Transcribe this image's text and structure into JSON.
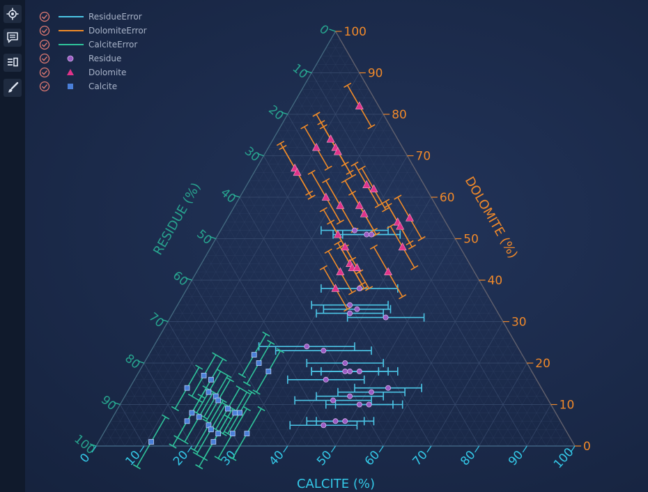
{
  "toolbar": {
    "items": [
      {
        "name": "zoom-to-fit-button",
        "icon": "crosshair-icon"
      },
      {
        "name": "annotations-button",
        "icon": "comment-icon"
      },
      {
        "name": "legend-toggle-button",
        "icon": "legend-icon"
      },
      {
        "name": "theme-button",
        "icon": "brush-icon"
      }
    ]
  },
  "colors": {
    "calcite": "#34c9e8",
    "dolomite": "#f0892a",
    "residue": "#2ab89a",
    "residue_err": "#4cc6e6",
    "dolomite_err": "#f28c28",
    "calcite_err": "#2fc49b",
    "residue_marker": "#9b5cc4",
    "dolomite_marker": "#e0338a",
    "calcite_marker": "#4a7fd8",
    "grid": "#3a4d70",
    "check": "#e07a72"
  },
  "chart_data": {
    "type": "ternary-scatter",
    "axes": {
      "calcite": {
        "title": "CALCITE (%)",
        "ticks": [
          0,
          10,
          20,
          30,
          40,
          50,
          60,
          70,
          80,
          90,
          100
        ],
        "range": [
          0,
          100
        ]
      },
      "dolomite": {
        "title": "DOLOMITE (%)",
        "ticks": [
          0,
          10,
          20,
          30,
          40,
          50,
          60,
          70,
          80,
          90,
          100
        ],
        "range": [
          0,
          100
        ]
      },
      "residue": {
        "title": "RESIDUE (%)",
        "ticks": [
          0,
          10,
          20,
          30,
          40,
          50,
          60,
          70,
          80,
          90,
          100
        ],
        "range": [
          0,
          100
        ]
      }
    },
    "legend": {
      "position": "top-left",
      "entries": [
        {
          "name": "ResidueError",
          "kind": "line",
          "color": "#4cc6e6"
        },
        {
          "name": "DolomiteError",
          "kind": "line",
          "color": "#f28c28"
        },
        {
          "name": "CalciteError",
          "kind": "line",
          "color": "#2fc49b"
        },
        {
          "name": "Residue",
          "kind": "circle",
          "color": "#9b5cc4"
        },
        {
          "name": "Dolomite",
          "kind": "triangle",
          "color": "#e0338a"
        },
        {
          "name": "Calcite",
          "kind": "square",
          "color": "#4a7fd8"
        }
      ]
    },
    "series": [
      {
        "name": "Residue",
        "marker": "circle",
        "error_axis": "residue",
        "points": [
          {
            "calcite": 28,
            "dolomite": 52,
            "residue": 20,
            "err": 7
          },
          {
            "calcite": 31,
            "dolomite": 51,
            "residue": 18,
            "err": 7
          },
          {
            "calcite": 32,
            "dolomite": 51,
            "residue": 17,
            "err": 6
          },
          {
            "calcite": 36,
            "dolomite": 38,
            "residue": 26,
            "err": 8
          },
          {
            "calcite": 36,
            "dolomite": 34,
            "residue": 30,
            "err": 8
          },
          {
            "calcite": 38,
            "dolomite": 33,
            "residue": 29,
            "err": 7
          },
          {
            "calcite": 37,
            "dolomite": 32,
            "residue": 31,
            "err": 7
          },
          {
            "calcite": 45,
            "dolomite": 31,
            "residue": 24,
            "err": 8
          },
          {
            "calcite": 32,
            "dolomite": 24,
            "residue": 44,
            "err": 10
          },
          {
            "calcite": 36,
            "dolomite": 23,
            "residue": 41,
            "err": 10
          },
          {
            "calcite": 42,
            "dolomite": 20,
            "residue": 38,
            "err": 8
          },
          {
            "calcite": 44,
            "dolomite": 18,
            "residue": 38,
            "err": 8
          },
          {
            "calcite": 46,
            "dolomite": 18,
            "residue": 36,
            "err": 8
          },
          {
            "calcite": 43,
            "dolomite": 18,
            "residue": 39,
            "err": 7
          },
          {
            "calcite": 40,
            "dolomite": 16,
            "residue": 44,
            "err": 8
          },
          {
            "calcite": 44,
            "dolomite": 11,
            "residue": 45,
            "err": 8
          },
          {
            "calcite": 47,
            "dolomite": 12,
            "residue": 41,
            "err": 7
          },
          {
            "calcite": 51,
            "dolomite": 13,
            "residue": 36,
            "err": 7
          },
          {
            "calcite": 54,
            "dolomite": 14,
            "residue": 32,
            "err": 7
          },
          {
            "calcite": 50,
            "dolomite": 10,
            "residue": 40,
            "err": 7
          },
          {
            "calcite": 52,
            "dolomite": 10,
            "residue": 38,
            "err": 7
          },
          {
            "calcite": 45,
            "dolomite": 5,
            "residue": 50,
            "err": 7
          },
          {
            "calcite": 47,
            "dolomite": 6,
            "residue": 47,
            "err": 6
          },
          {
            "calcite": 49,
            "dolomite": 6,
            "residue": 45,
            "err": 6
          }
        ]
      },
      {
        "name": "Dolomite",
        "marker": "triangle",
        "error_axis": "dolomite",
        "points": [
          {
            "calcite": 14,
            "dolomite": 82,
            "residue": 4,
            "err": 5
          },
          {
            "calcite": 14,
            "dolomite": 72,
            "residue": 14,
            "err": 6
          },
          {
            "calcite": 15,
            "dolomite": 71,
            "residue": 14,
            "err": 6
          },
          {
            "calcite": 12,
            "dolomite": 74,
            "residue": 14,
            "err": 6
          },
          {
            "calcite": 10,
            "dolomite": 72,
            "residue": 18,
            "err": 5
          },
          {
            "calcite": 8,
            "dolomite": 67,
            "residue": 25,
            "err": 6
          },
          {
            "calcite": 9,
            "dolomite": 66,
            "residue": 25,
            "err": 6
          },
          {
            "calcite": 18,
            "dolomite": 60,
            "residue": 22,
            "err": 6
          },
          {
            "calcite": 25,
            "dolomite": 63,
            "residue": 12,
            "err": 5
          },
          {
            "calcite": 27,
            "dolomite": 62,
            "residue": 11,
            "err": 5
          },
          {
            "calcite": 22,
            "dolomite": 58,
            "residue": 20,
            "err": 6
          },
          {
            "calcite": 26,
            "dolomite": 58,
            "residue": 16,
            "err": 6
          },
          {
            "calcite": 28,
            "dolomite": 56,
            "residue": 16,
            "err": 5
          },
          {
            "calcite": 25,
            "dolomite": 51,
            "residue": 24,
            "err": 6
          },
          {
            "calcite": 28,
            "dolomite": 48,
            "residue": 24,
            "err": 6
          },
          {
            "calcite": 31,
            "dolomite": 44,
            "residue": 25,
            "err": 5
          },
          {
            "calcite": 32,
            "dolomite": 43,
            "residue": 25,
            "err": 5
          },
          {
            "calcite": 30,
            "dolomite": 42,
            "residue": 28,
            "err": 5
          },
          {
            "calcite": 31,
            "dolomite": 38,
            "residue": 31,
            "err": 5
          },
          {
            "calcite": 33,
            "dolomite": 43,
            "residue": 24,
            "err": 5
          },
          {
            "calcite": 36,
            "dolomite": 54,
            "residue": 10,
            "err": 5
          },
          {
            "calcite": 38,
            "dolomite": 55,
            "residue": 7,
            "err": 5
          },
          {
            "calcite": 37,
            "dolomite": 53,
            "residue": 10,
            "err": 5
          },
          {
            "calcite": 40,
            "dolomite": 48,
            "residue": 12,
            "err": 5
          },
          {
            "calcite": 40,
            "dolomite": 42,
            "residue": 18,
            "err": 6
          }
        ]
      },
      {
        "name": "Calcite",
        "marker": "square",
        "error_axis": "calcite",
        "points": [
          {
            "calcite": 22,
            "dolomite": 22,
            "residue": 56,
            "err": 5
          },
          {
            "calcite": 24,
            "dolomite": 20,
            "residue": 56,
            "err": 5
          },
          {
            "calcite": 27,
            "dolomite": 18,
            "residue": 55,
            "err": 5
          },
          {
            "calcite": 14,
            "dolomite": 17,
            "residue": 69,
            "err": 5
          },
          {
            "calcite": 16,
            "dolomite": 16,
            "residue": 68,
            "err": 5
          },
          {
            "calcite": 12,
            "dolomite": 14,
            "residue": 74,
            "err": 5
          },
          {
            "calcite": 17,
            "dolomite": 13,
            "residue": 70,
            "err": 5
          },
          {
            "calcite": 19,
            "dolomite": 12,
            "residue": 69,
            "err": 5
          },
          {
            "calcite": 20,
            "dolomite": 11,
            "residue": 69,
            "err": 5
          },
          {
            "calcite": 23,
            "dolomite": 9,
            "residue": 68,
            "err": 5
          },
          {
            "calcite": 25,
            "dolomite": 8,
            "residue": 67,
            "err": 5
          },
          {
            "calcite": 26,
            "dolomite": 8,
            "residue": 66,
            "err": 5
          },
          {
            "calcite": 16,
            "dolomite": 8,
            "residue": 76,
            "err": 6
          },
          {
            "calcite": 18,
            "dolomite": 7,
            "residue": 75,
            "err": 6
          },
          {
            "calcite": 16,
            "dolomite": 6,
            "residue": 78,
            "err": 6
          },
          {
            "calcite": 21,
            "dolomite": 5,
            "residue": 74,
            "err": 6
          },
          {
            "calcite": 22,
            "dolomite": 4,
            "residue": 74,
            "err": 6
          },
          {
            "calcite": 24,
            "dolomite": 3,
            "residue": 73,
            "err": 6
          },
          {
            "calcite": 27,
            "dolomite": 3,
            "residue": 70,
            "err": 6
          },
          {
            "calcite": 30,
            "dolomite": 3,
            "residue": 67,
            "err": 6
          },
          {
            "calcite": 24,
            "dolomite": 1,
            "residue": 75,
            "err": 6
          },
          {
            "calcite": 11,
            "dolomite": 1,
            "residue": 88,
            "err": 6
          }
        ]
      }
    ]
  }
}
